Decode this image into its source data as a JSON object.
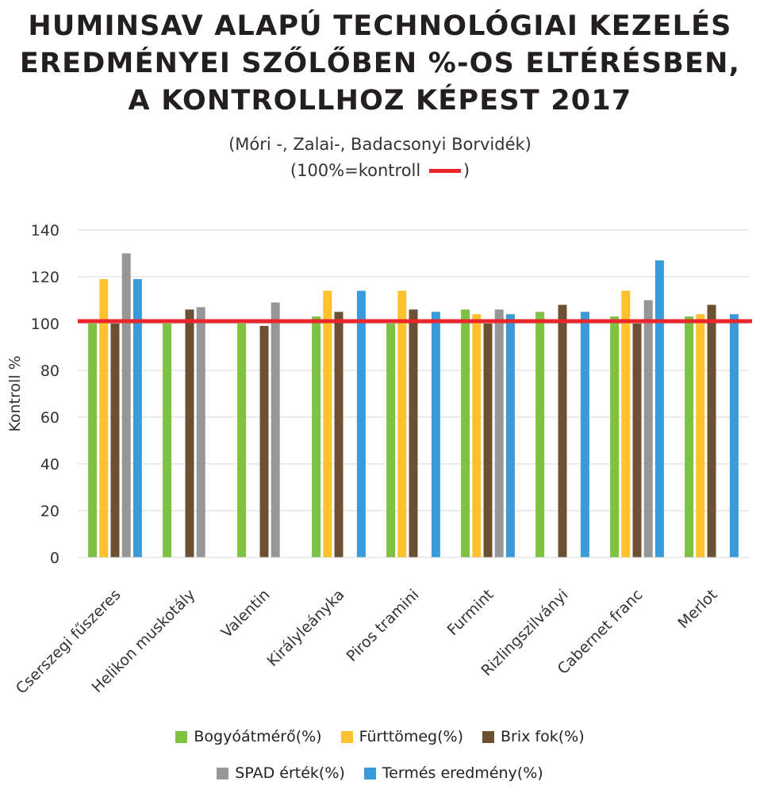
{
  "title_lines": [
    "HUMINSAV ALAPÚ TECHNOLÓGIAI KEZELÉS",
    "EREDMÉNYEI SZŐLŐBEN %-OS ELTÉRÉSBEN,",
    "A KONTROLLHOZ KÉPEST 2017"
  ],
  "subtitle_line1": "(Móri -, Zalai-, Badacsonyi Borvidék)",
  "subtitle_line2_prefix": "(100%=kontroll ",
  "subtitle_line2_suffix": ")",
  "chart_data": {
    "type": "bar",
    "title": "HUMINSAV ALAPÚ TECHNOLÓGIAI KEZELÉS EREDMÉNYEI SZŐLŐBEN %-OS ELTÉRÉSBEN, A KONTROLLHOZ KÉPEST 2017",
    "ylabel": "Kontroll %",
    "xlabel": "",
    "ylim": [
      0,
      140
    ],
    "yticks": [
      "0",
      "20",
      "40",
      "60",
      "80",
      "100",
      "120",
      "140"
    ],
    "grid": true,
    "legend_position": "bottom",
    "reference_line": {
      "value": 101,
      "color": "#e8262b"
    },
    "categories": [
      "Cserszegi fűszeres",
      "Helikon muskotály",
      "Valentin",
      "Királyleányka",
      "Piros tramini",
      "Furmint",
      "Rizlingszilványi",
      "Cabernet franc",
      "Merlot"
    ],
    "series": [
      {
        "name": "Bogyóátmérő(%)",
        "color": "#7dc242",
        "values": [
          100,
          100,
          100,
          103,
          100,
          106,
          105,
          103,
          103
        ]
      },
      {
        "name": "Fürttömeg(%)",
        "color": "#fdc12d",
        "values": [
          119,
          null,
          null,
          114,
          114,
          104,
          null,
          114,
          104
        ]
      },
      {
        "name": "Brix fok(%)",
        "color": "#6d5032",
        "values": [
          100,
          106,
          99,
          105,
          106,
          100,
          108,
          100,
          108
        ]
      },
      {
        "name": "SPAD érték(%)",
        "color": "#969696",
        "values": [
          130,
          107,
          109,
          null,
          null,
          106,
          null,
          110,
          null
        ]
      },
      {
        "name": "Termés eredmény(%)",
        "color": "#3b9ad9",
        "values": [
          119,
          null,
          null,
          114,
          105,
          104,
          105,
          127,
          104
        ]
      }
    ]
  }
}
